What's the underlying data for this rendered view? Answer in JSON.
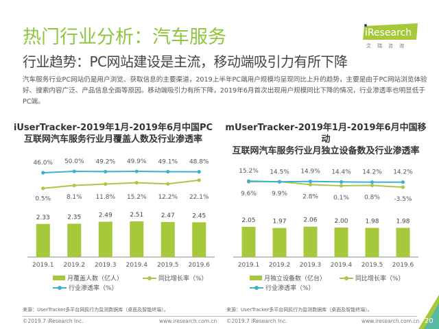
{
  "header": {
    "title": "热门行业分析：汽车服务",
    "subtitle": "行业趋势：PC网站建设是主流，移动端吸引力有所下降",
    "logo_text": "iResearch",
    "logo_sub": "艾瑞咨询"
  },
  "body_text": "汽车服务行业PC网站仍是用户浏览、获取信息的主要渠道，2019上半年PC端用户规模均呈现同比上升的趋势，主要是由于PC网站浏览体验好、搜索内容广泛、产品信息全面等原因。移动端吸引力有所下降，2019年6月首次出现用户规模同比下降的情况，行业渗透率也明显低于PC端。",
  "colors": {
    "title": "#8dc63f",
    "bar": "#a5c93a",
    "growth_line": "#a9c84a",
    "penetration_line": "#3bb0cf"
  },
  "chart_data": [
    {
      "type": "bar",
      "title": "iUserTracker-2019年1月-2019年6月中国PC互联网汽车服务行业月覆盖人数及行业渗透率",
      "title_lines": [
        "iUserTracker-2019年1月-2019年6月中国PC",
        "互联网汽车服务行业月覆盖人数及行业渗透率"
      ],
      "categories": [
        "2019.1",
        "2019.2",
        "2019.3",
        "2019.4",
        "2019.5",
        "2019.6"
      ],
      "series": [
        {
          "name": "月覆盖人数（亿人）",
          "type": "bar",
          "values": [
            2.33,
            2.35,
            2.49,
            2.51,
            2.47,
            2.45
          ],
          "labels": [
            "2.33",
            "2.35",
            "2.49",
            "2.51",
            "2.47",
            "2.45"
          ]
        },
        {
          "name": "同比增长率（%）",
          "type": "line",
          "values": [
            0.5,
            8.1,
            11.8,
            15.2,
            12.2,
            22.1
          ],
          "labels": [
            "0.5%",
            "8.1%",
            "11.8%",
            "15.2%",
            "12.2%",
            "22.1%"
          ]
        },
        {
          "name": "行业渗透率（%）",
          "type": "line",
          "values": [
            46.0,
            50.0,
            49.2,
            49.9,
            49.1,
            48.8
          ],
          "labels": [
            "46.0%",
            "50.0%",
            "49.2%",
            "49.9%",
            "49.1%",
            "48.8%"
          ]
        }
      ],
      "legend_position": "bottom",
      "source": "来源：UserTracker多平台网民行为监测数据库（桌面及智能终端）。"
    },
    {
      "type": "bar",
      "title": "mUserTracker-2019年1月-2019年6月中国移动互联网汽车服务行业月独立设备数及行业渗透率",
      "title_lines": [
        "mUserTracker-2019年1月-2019年6月中国移动",
        "互联网汽车服务行业月独立设备数及行业渗透率"
      ],
      "categories": [
        "2019.1",
        "2019.2",
        "2019.3",
        "2019.4",
        "2019.5",
        "2019.6"
      ],
      "series": [
        {
          "name": "月独立设备数（亿台）",
          "type": "bar",
          "values": [
            2.05,
            1.97,
            2.06,
            2.0,
            1.98,
            1.98
          ],
          "labels": [
            "2.05",
            "1.97",
            "2.06",
            "2.00",
            "1.98",
            "1.98"
          ]
        },
        {
          "name": "同比增长率（%）",
          "type": "line",
          "values": [
            9.6,
            9.9,
            2.8,
            0.1,
            0.8,
            -3.5
          ],
          "labels": [
            "9.6%",
            "9.9%",
            "2.8%",
            "0.1%",
            "0.8%",
            "-3.5%"
          ]
        },
        {
          "name": "行业渗透率（%）",
          "type": "line",
          "values": [
            15.2,
            14.5,
            14.9,
            14.4,
            14.2,
            14.2
          ],
          "labels": [
            "15.2%",
            "14.5%",
            "14.9%",
            "14.4%",
            "14.2%",
            "14.2%"
          ]
        }
      ],
      "legend_position": "bottom",
      "source": "来源：UserTracker多平台网民行为监测数据库（桌面及智能终端）。"
    }
  ],
  "footer": {
    "copyright": "©2019.7 iResearch Inc.",
    "url": "www.iresearch.com.cn",
    "page": "20"
  }
}
